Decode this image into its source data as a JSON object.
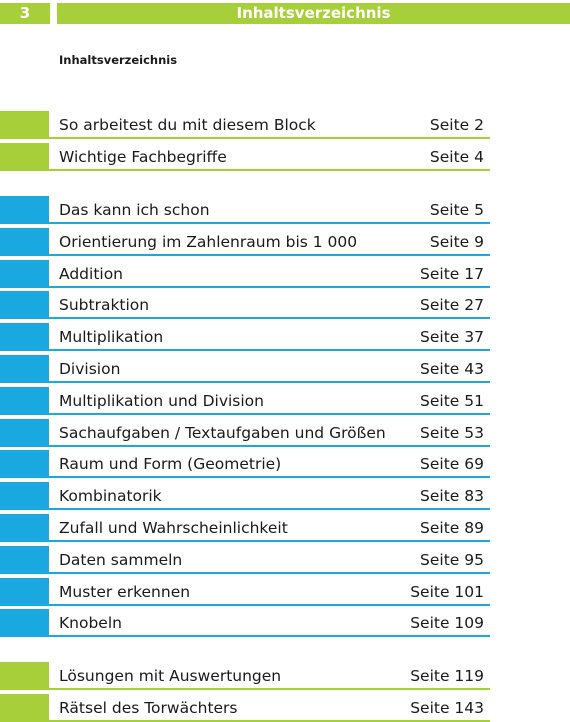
{
  "header": {
    "page_number": "3",
    "title": "Inhaltsverzeichnis"
  },
  "subtitle": "Inhaltsverzeichnis",
  "colors": {
    "green": "#a6cf3a",
    "blue": "#1aa8e0"
  },
  "groups": [
    {
      "color": "green",
      "entries": [
        {
          "title": "So arbeitest du mit diesem Block",
          "page": "Seite 2"
        },
        {
          "title": "Wichtige Fachbegriffe",
          "page": "Seite 4"
        }
      ]
    },
    {
      "color": "blue",
      "entries": [
        {
          "title": "Das kann ich schon",
          "page": "Seite 5"
        },
        {
          "title": "Orientierung im Zahlenraum bis 1 000",
          "page": "Seite 9"
        },
        {
          "title": "Addition",
          "page": "Seite 17"
        },
        {
          "title": "Subtraktion",
          "page": "Seite 27"
        },
        {
          "title": "Multiplikation",
          "page": "Seite 37"
        },
        {
          "title": "Division",
          "page": "Seite 43"
        },
        {
          "title": "Multiplikation und Division",
          "page": "Seite 51"
        },
        {
          "title": "Sachaufgaben / Textaufgaben und Größen",
          "page": "Seite 53"
        },
        {
          "title": "Raum und Form (Geometrie)",
          "page": "Seite 69"
        },
        {
          "title": "Kombinatorik",
          "page": "Seite 83"
        },
        {
          "title": "Zufall und Wahrscheinlichkeit",
          "page": "Seite 89"
        },
        {
          "title": "Daten sammeln",
          "page": "Seite 95"
        },
        {
          "title": "Muster erkennen",
          "page": "Seite 101"
        },
        {
          "title": "Knobeln",
          "page": "Seite 109"
        }
      ]
    },
    {
      "color": "green",
      "entries": [
        {
          "title": "Lösungen mit Auswertungen",
          "page": "Seite 119"
        },
        {
          "title": "Rätsel des Torwächters",
          "page": "Seite 143"
        }
      ]
    }
  ]
}
